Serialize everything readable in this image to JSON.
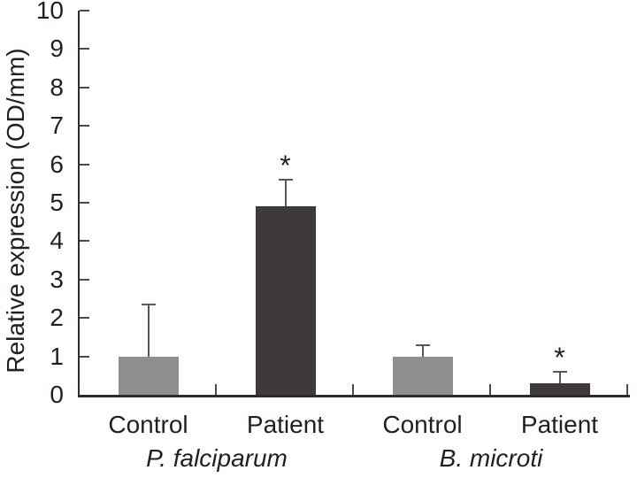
{
  "figure": {
    "background": "#ffffff",
    "text_color": "#231f20",
    "axis_color": "#2e2b2a",
    "tick_color": "#4d4948",
    "error_bar_color": "#595757"
  },
  "chart_data": {
    "type": "bar",
    "title": "",
    "xlabel": "",
    "ylabel": "Relative expression (OD/mm)",
    "ylim": [
      0,
      10
    ],
    "yticks": [
      0,
      1,
      2,
      3,
      4,
      5,
      6,
      7,
      8,
      9,
      10
    ],
    "grid": false,
    "legend": null,
    "error_bars": "plus_direction_only",
    "significance_marker": "*",
    "palette": {
      "control": "#8f8f8f",
      "patient": "#3d3a39"
    },
    "groups": [
      {
        "label": "P. falciparum",
        "italic": true
      },
      {
        "label": "B. microti",
        "italic": true
      }
    ],
    "categories": [
      "Control",
      "Patient",
      "Control",
      "Patient"
    ],
    "bars": [
      {
        "group": 0,
        "category": "Control",
        "value": 1.0,
        "error_plus": 1.35,
        "color": "control",
        "significant": false
      },
      {
        "group": 0,
        "category": "Patient",
        "value": 4.9,
        "error_plus": 0.7,
        "color": "patient",
        "significant": true
      },
      {
        "group": 1,
        "category": "Control",
        "value": 1.0,
        "error_plus": 0.3,
        "color": "control",
        "significant": false
      },
      {
        "group": 1,
        "category": "Patient",
        "value": 0.3,
        "error_plus": 0.3,
        "color": "patient",
        "significant": true
      }
    ]
  }
}
